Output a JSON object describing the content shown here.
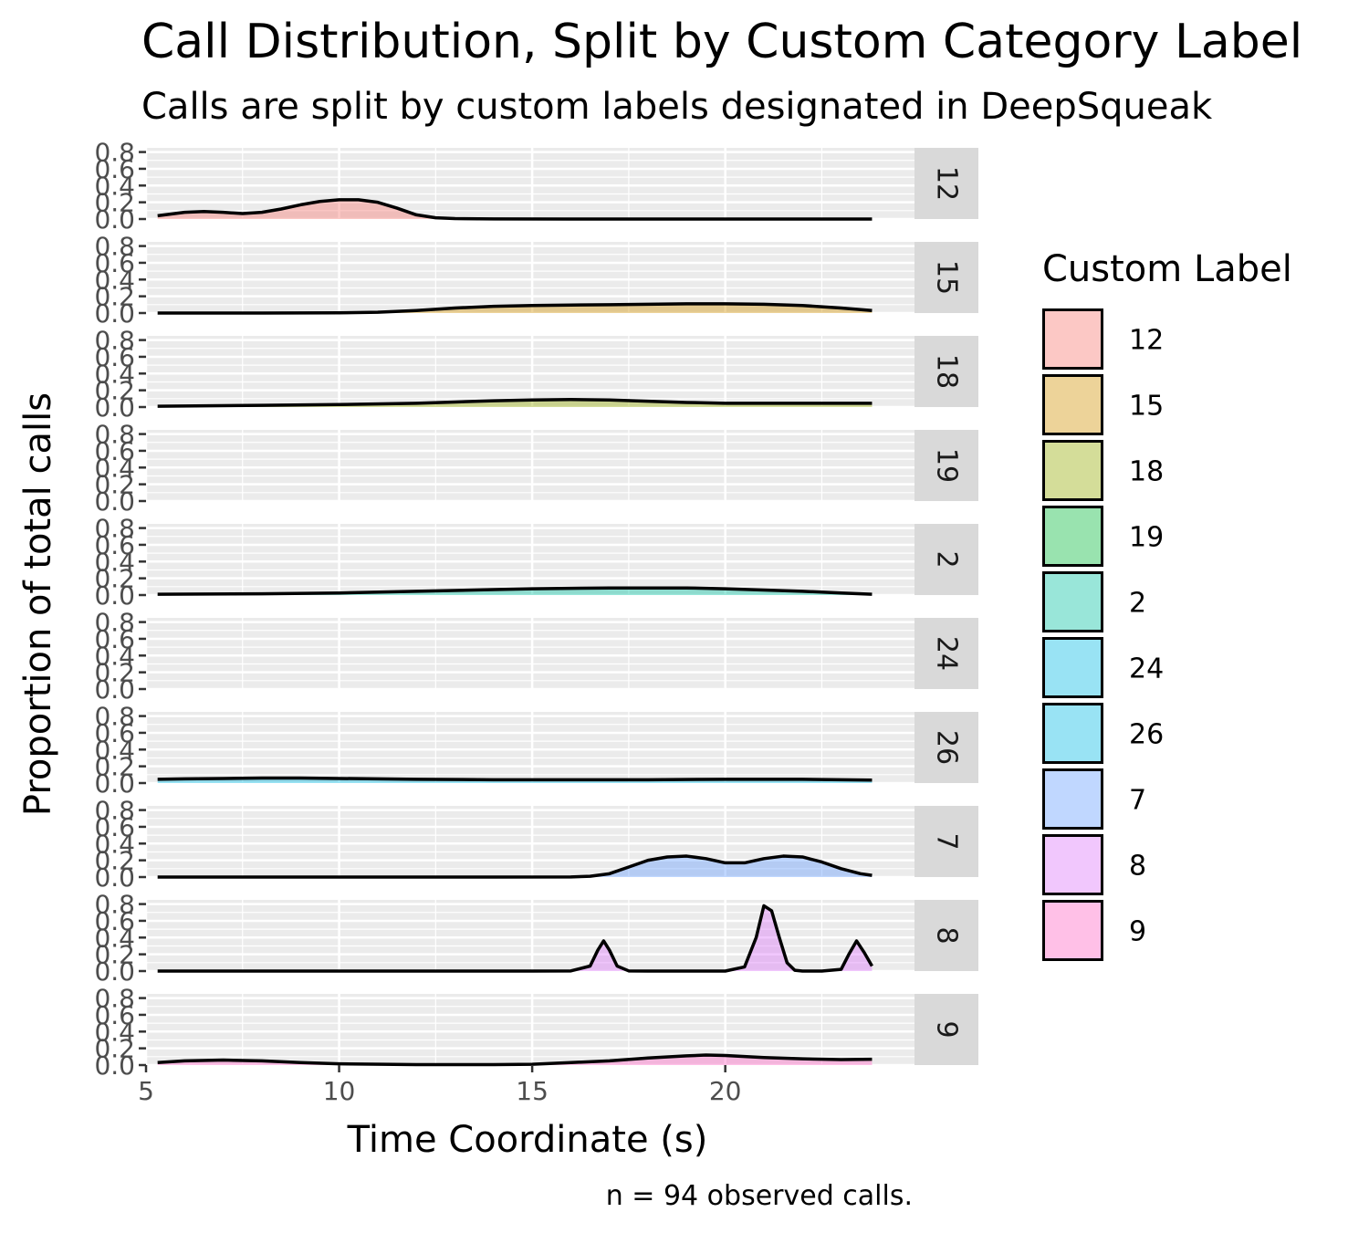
{
  "chart_data": {
    "type": "area",
    "title": "Call Distribution, Split by Custom Category Label",
    "subtitle": "Calls are split by custom labels designated in DeepSqueak",
    "xlabel": "Time Coordinate (s)",
    "ylabel": "Proportion of total calls",
    "caption": "n = 94 observed calls.",
    "legend_title": "Custom Label",
    "legend_position": "right",
    "grid": true,
    "xlim": [
      5,
      24.9
    ],
    "ylim": [
      0,
      0.85
    ],
    "x_ticks": [
      5,
      10,
      15,
      20
    ],
    "y_ticks": [
      0.0,
      0.2,
      0.4,
      0.6,
      0.8
    ],
    "y_tick_labels": [
      "0.0",
      "0.2",
      "0.4",
      "0.6",
      "0.8"
    ],
    "series": [
      {
        "name": "12",
        "color": "#F8766D",
        "x": [
          5.3,
          6.0,
          6.5,
          7.0,
          7.5,
          8.0,
          8.5,
          9.0,
          9.5,
          10.0,
          10.5,
          11.0,
          11.5,
          12.0,
          12.5,
          13.0,
          14.0,
          16.0,
          18.0,
          20.0,
          22.0,
          23.8
        ],
        "y": [
          0.04,
          0.08,
          0.09,
          0.08,
          0.065,
          0.08,
          0.12,
          0.17,
          0.21,
          0.23,
          0.23,
          0.2,
          0.13,
          0.05,
          0.015,
          0.005,
          0.001,
          0.0,
          0.0,
          0.0,
          0.0,
          0.0
        ]
      },
      {
        "name": "15",
        "color": "#D39200",
        "x": [
          5.3,
          8.0,
          10.0,
          11.0,
          12.0,
          13.0,
          14.0,
          15.0,
          16.0,
          17.0,
          18.0,
          19.0,
          20.0,
          21.0,
          22.0,
          23.0,
          23.8
        ],
        "y": [
          0.0,
          0.0,
          0.003,
          0.01,
          0.03,
          0.06,
          0.08,
          0.09,
          0.095,
          0.1,
          0.105,
          0.11,
          0.11,
          0.105,
          0.09,
          0.06,
          0.03
        ]
      },
      {
        "name": "18",
        "color": "#93AA00",
        "x": [
          5.3,
          8.0,
          10.0,
          12.0,
          13.0,
          14.0,
          15.0,
          16.0,
          17.0,
          18.0,
          19.0,
          20.0,
          21.0,
          22.0,
          23.0,
          23.8
        ],
        "y": [
          0.01,
          0.02,
          0.03,
          0.045,
          0.06,
          0.075,
          0.085,
          0.09,
          0.085,
          0.07,
          0.055,
          0.045,
          0.045,
          0.045,
          0.045,
          0.045
        ]
      },
      {
        "name": "19",
        "color": "#00BA38",
        "x": [],
        "y": []
      },
      {
        "name": "2",
        "color": "#00C19F",
        "x": [
          5.3,
          8.0,
          10.0,
          12.0,
          14.0,
          15.0,
          16.0,
          17.0,
          18.0,
          19.0,
          20.0,
          21.0,
          22.0,
          23.0,
          23.8
        ],
        "y": [
          0.01,
          0.015,
          0.025,
          0.045,
          0.065,
          0.075,
          0.08,
          0.085,
          0.085,
          0.085,
          0.075,
          0.06,
          0.045,
          0.025,
          0.01
        ]
      },
      {
        "name": "24",
        "color": "#00B9E3",
        "x": [],
        "y": []
      },
      {
        "name": "26",
        "color": "#00B9E3",
        "x": [
          5.3,
          6.0,
          7.0,
          8.0,
          9.0,
          10.0,
          12.0,
          14.0,
          16.0,
          18.0,
          20.0,
          22.0,
          23.8
        ],
        "y": [
          0.045,
          0.05,
          0.055,
          0.06,
          0.06,
          0.055,
          0.045,
          0.04,
          0.04,
          0.04,
          0.045,
          0.045,
          0.035
        ]
      },
      {
        "name": "7",
        "color": "#619CFF",
        "x": [
          5.3,
          14.0,
          16.0,
          16.5,
          17.0,
          17.5,
          18.0,
          18.5,
          19.0,
          19.5,
          20.0,
          20.5,
          21.0,
          21.5,
          22.0,
          22.5,
          23.0,
          23.5,
          23.8
        ],
        "y": [
          0.0,
          0.0,
          0.002,
          0.01,
          0.04,
          0.12,
          0.2,
          0.24,
          0.25,
          0.22,
          0.17,
          0.17,
          0.22,
          0.25,
          0.24,
          0.18,
          0.1,
          0.04,
          0.02
        ]
      },
      {
        "name": "8",
        "color": "#DB72FB",
        "x": [
          5.3,
          15.0,
          16.0,
          16.5,
          16.7,
          16.85,
          17.0,
          17.2,
          17.5,
          18.0,
          19.0,
          20.0,
          20.5,
          20.8,
          21.0,
          21.2,
          21.4,
          21.6,
          21.8,
          22.0,
          22.5,
          23.0,
          23.2,
          23.4,
          23.6,
          23.8
        ],
        "y": [
          0.0,
          0.0,
          0.002,
          0.06,
          0.25,
          0.36,
          0.25,
          0.06,
          0.002,
          0.0,
          0.0,
          0.0,
          0.05,
          0.4,
          0.78,
          0.72,
          0.4,
          0.1,
          0.01,
          0.0,
          0.0,
          0.02,
          0.2,
          0.36,
          0.22,
          0.06
        ]
      },
      {
        "name": "9",
        "color": "#FF61C3",
        "x": [
          5.3,
          6.0,
          7.0,
          8.0,
          9.0,
          10.0,
          12.0,
          14.0,
          15.0,
          16.0,
          17.0,
          18.0,
          19.0,
          19.5,
          20.0,
          21.0,
          22.0,
          23.0,
          23.8
        ],
        "y": [
          0.03,
          0.05,
          0.06,
          0.05,
          0.03,
          0.015,
          0.005,
          0.005,
          0.01,
          0.03,
          0.05,
          0.085,
          0.11,
          0.12,
          0.115,
          0.09,
          0.075,
          0.065,
          0.07
        ]
      }
    ]
  }
}
